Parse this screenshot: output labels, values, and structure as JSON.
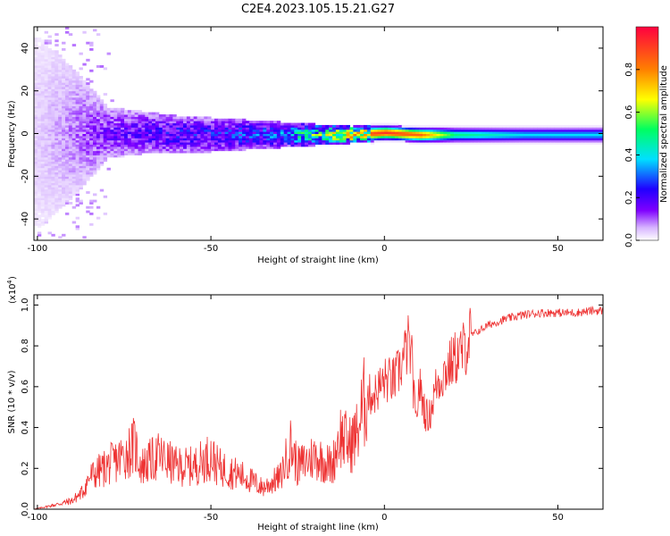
{
  "chart_data": [
    {
      "type": "heatmap",
      "title": "C2E4.2023.105.15.21.G27",
      "xlabel": "Height of straight line (km)",
      "ylabel": "Frequency (Hz)",
      "xlim": [
        -101,
        63
      ],
      "ylim": [
        -50,
        50
      ],
      "x_ticks": [
        -100,
        -50,
        0,
        50
      ],
      "y_ticks": [
        -40,
        -20,
        0,
        20,
        40
      ],
      "colorbar": {
        "label": "Normalized spectral amplitude",
        "range": [
          0,
          1
        ],
        "ticks": [
          "0.0",
          "0.2",
          "0.4",
          "0.6",
          "0.8"
        ],
        "colors": [
          "#ffffff",
          "#d6b3ff",
          "#7f00ff",
          "#2000ff",
          "#00e0ff",
          "#00ff60",
          "#ffff00",
          "#ff8000",
          "#ff0040"
        ]
      },
      "description_points": {
        "x": [
          -100,
          -90,
          -80,
          -70,
          -60,
          -50,
          -40,
          -30,
          -20,
          -10,
          0,
          10,
          20,
          30,
          40,
          50,
          60
        ],
        "center_freq": [
          0,
          0,
          0,
          0,
          -1,
          -1,
          -1,
          -1,
          -1,
          -1,
          0,
          -1,
          -1,
          -1,
          -1,
          -1,
          -1
        ],
        "band_halfwidth": [
          45,
          30,
          12,
          10,
          9,
          8,
          7,
          6,
          5,
          4,
          3.5,
          3.5,
          3.5,
          3.5,
          3.5,
          3.5,
          3.5
        ],
        "peak_amplitude": [
          0.1,
          0.2,
          0.3,
          0.35,
          0.4,
          0.4,
          0.45,
          0.5,
          0.7,
          0.9,
          0.95,
          0.9,
          0.6,
          0.55,
          0.5,
          0.5,
          0.5
        ]
      }
    },
    {
      "type": "line",
      "xlabel": "Height of straight line (km)",
      "ylabel": "SNR (10 * v/v)",
      "ylabel_multiplier": "(x10",
      "ylabel_exponent": "4",
      "ylabel_close": ")",
      "xlim": [
        -101,
        63
      ],
      "ylim": [
        0,
        1.05
      ],
      "x_ticks": [
        -100,
        -50,
        0,
        50
      ],
      "y_ticks": [
        "0.0",
        "0.2",
        "0.4",
        "0.6",
        "0.8",
        "1.0"
      ],
      "color": "#ee3333",
      "series": [
        {
          "x": [
            -101,
            -95,
            -90,
            -87,
            -85,
            -80,
            -75,
            -72,
            -70,
            -65,
            -60,
            -55,
            -50,
            -48,
            -45,
            -40,
            -35,
            -30,
            -27,
            -25,
            -20,
            -15,
            -13,
            -10,
            -8,
            -5,
            -3,
            0,
            3,
            5,
            7,
            8,
            9,
            10,
            12,
            13,
            15,
            17,
            20,
            22,
            24,
            25,
            28,
            30,
            35,
            40,
            45,
            50,
            55,
            60,
            63
          ],
          "values": [
            0.0,
            0.02,
            0.04,
            0.08,
            0.15,
            0.2,
            0.25,
            0.3,
            0.2,
            0.25,
            0.2,
            0.2,
            0.25,
            0.2,
            0.18,
            0.15,
            0.1,
            0.15,
            0.3,
            0.2,
            0.25,
            0.2,
            0.35,
            0.3,
            0.35,
            0.55,
            0.55,
            0.62,
            0.62,
            0.7,
            0.8,
            0.7,
            0.4,
            0.6,
            0.45,
            0.45,
            0.6,
            0.65,
            0.72,
            0.75,
            0.8,
            0.85,
            0.88,
            0.9,
            0.93,
            0.95,
            0.96,
            0.96,
            0.96,
            0.97,
            0.97
          ]
        }
      ]
    }
  ]
}
